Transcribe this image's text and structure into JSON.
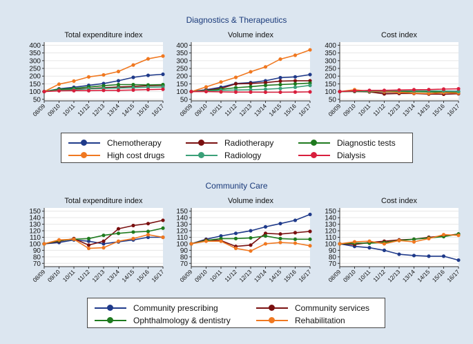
{
  "sections": [
    {
      "title": "Diagnostics & Therapeutics",
      "colors": [
        "#1f3a8a",
        "#7a1010",
        "#1e7a1e",
        "#f07820",
        "#3aa078",
        "#d81e3c"
      ],
      "legend": [
        "Chemotherapy",
        "Radiotherapy",
        "Diagnostic tests",
        "High cost drugs",
        "Radiology",
        "Dialysis"
      ]
    },
    {
      "title": "Community Care",
      "colors": [
        "#1f3a8a",
        "#7a1010",
        "#1e7a1e",
        "#f07820"
      ],
      "legend": [
        "Community prescribing",
        "Community services",
        "Ophthalmology & dentistry",
        "Rehabilitation"
      ]
    }
  ],
  "chart_data": [
    {
      "type": "line",
      "section": 0,
      "title": "Total expenditure index",
      "categories": [
        "08/09",
        "09/10",
        "10/11",
        "11/12",
        "12/13",
        "13/14",
        "14/15",
        "15/16",
        "16/17"
      ],
      "yticks": [
        50,
        100,
        150,
        200,
        250,
        300,
        350,
        400
      ],
      "ylim": [
        40,
        420
      ],
      "series": [
        {
          "name": "Chemotherapy",
          "values": [
            100,
            118,
            128,
            140,
            152,
            170,
            192,
            205,
            212
          ]
        },
        {
          "name": "Radiotherapy",
          "values": [
            100,
            110,
            115,
            120,
            125,
            130,
            133,
            138,
            140
          ]
        },
        {
          "name": "Diagnostic tests",
          "values": [
            100,
            115,
            120,
            130,
            138,
            145,
            145,
            143,
            145
          ]
        },
        {
          "name": "High cost drugs",
          "values": [
            100,
            148,
            168,
            195,
            208,
            230,
            272,
            312,
            330
          ]
        },
        {
          "name": "Radiology",
          "values": [
            100,
            108,
            112,
            118,
            120,
            123,
            125,
            128,
            130
          ]
        },
        {
          "name": "Dialysis",
          "values": [
            100,
            105,
            106,
            106,
            108,
            108,
            110,
            113,
            115
          ]
        }
      ]
    },
    {
      "type": "line",
      "section": 0,
      "title": "Volume index",
      "categories": [
        "08/09",
        "09/10",
        "10/11",
        "11/12",
        "12/13",
        "13/14",
        "14/15",
        "15/16",
        "16/17"
      ],
      "yticks": [
        50,
        100,
        150,
        200,
        250,
        300,
        350,
        400
      ],
      "ylim": [
        40,
        420
      ],
      "series": [
        {
          "name": "Chemotherapy",
          "values": [
            100,
            112,
            128,
            152,
            158,
            170,
            190,
            195,
            210
          ]
        },
        {
          "name": "Radiotherapy",
          "values": [
            100,
            108,
            120,
            150,
            152,
            158,
            168,
            170,
            170
          ]
        },
        {
          "name": "Diagnostic tests",
          "values": [
            100,
            105,
            115,
            125,
            132,
            140,
            145,
            150,
            155
          ]
        },
        {
          "name": "High cost drugs",
          "values": [
            100,
            130,
            162,
            192,
            228,
            260,
            310,
            335,
            370
          ]
        },
        {
          "name": "Radiology",
          "values": [
            100,
            103,
            108,
            110,
            112,
            115,
            120,
            128,
            140
          ]
        },
        {
          "name": "Dialysis",
          "values": [
            100,
            100,
            98,
            97,
            97,
            96,
            96,
            97,
            98
          ]
        }
      ]
    },
    {
      "type": "line",
      "section": 0,
      "title": "Cost index",
      "categories": [
        "08/09",
        "09/10",
        "10/11",
        "11/12",
        "12/13",
        "13/14",
        "14/15",
        "15/16",
        "16/17"
      ],
      "yticks": [
        50,
        100,
        150,
        200,
        250,
        300,
        350,
        400
      ],
      "ylim": [
        40,
        420
      ],
      "series": [
        {
          "name": "Chemotherapy",
          "values": [
            100,
            104,
            100,
            95,
            96,
            100,
            100,
            103,
            102
          ]
        },
        {
          "name": "Radiotherapy",
          "values": [
            100,
            101,
            98,
            85,
            88,
            88,
            84,
            83,
            86
          ]
        },
        {
          "name": "Diagnostic tests",
          "values": [
            100,
            102,
            100,
            100,
            100,
            100,
            98,
            96,
            94
          ]
        },
        {
          "name": "High cost drugs",
          "values": [
            100,
            112,
            102,
            98,
            95,
            90,
            88,
            93,
            90
          ]
        },
        {
          "name": "Radiology",
          "values": [
            100,
            104,
            104,
            105,
            105,
            105,
            105,
            104,
            100
          ]
        },
        {
          "name": "Dialysis",
          "values": [
            100,
            105,
            108,
            108,
            110,
            112,
            113,
            116,
            118
          ]
        }
      ]
    },
    {
      "type": "line",
      "section": 1,
      "title": "Total expenditure index",
      "categories": [
        "08/09",
        "09/10",
        "10/11",
        "11/12",
        "12/13",
        "13/14",
        "14/15",
        "15/16",
        "16/17"
      ],
      "yticks": [
        70,
        80,
        90,
        100,
        110,
        120,
        130,
        140,
        150
      ],
      "ylim": [
        65,
        155
      ],
      "series": [
        {
          "name": "Community prescribing",
          "values": [
            100,
            102,
            106,
            104,
            100,
            103,
            106,
            110,
            110
          ]
        },
        {
          "name": "Community services",
          "values": [
            100,
            104,
            108,
            98,
            104,
            123,
            128,
            131,
            136
          ]
        },
        {
          "name": "Ophthalmology & dentistry",
          "values": [
            100,
            105,
            107,
            108,
            113,
            116,
            118,
            119,
            124
          ]
        },
        {
          "name": "Rehabilitation",
          "values": [
            100,
            106,
            107,
            93,
            94,
            104,
            108,
            114,
            110
          ]
        }
      ]
    },
    {
      "type": "line",
      "section": 1,
      "title": "Volume index",
      "categories": [
        "08/09",
        "09/10",
        "10/11",
        "11/12",
        "12/13",
        "13/14",
        "14/15",
        "15/16",
        "16/17"
      ],
      "yticks": [
        70,
        80,
        90,
        100,
        110,
        120,
        130,
        140,
        150
      ],
      "ylim": [
        65,
        155
      ],
      "series": [
        {
          "name": "Community prescribing",
          "values": [
            100,
            107,
            112,
            116,
            120,
            126,
            131,
            136,
            145
          ]
        },
        {
          "name": "Community services",
          "values": [
            100,
            106,
            105,
            96,
            98,
            116,
            115,
            117,
            119
          ]
        },
        {
          "name": "Ophthalmology & dentistry",
          "values": [
            100,
            105,
            108,
            108,
            109,
            112,
            108,
            107,
            107
          ]
        },
        {
          "name": "Rehabilitation",
          "values": [
            100,
            104,
            104,
            93,
            89,
            100,
            102,
            101,
            97
          ]
        }
      ]
    },
    {
      "type": "line",
      "section": 1,
      "title": "Cost index",
      "categories": [
        "08/09",
        "09/10",
        "10/11",
        "11/12",
        "12/13",
        "13/14",
        "14/15",
        "15/16",
        "16/17"
      ],
      "yticks": [
        70,
        80,
        90,
        100,
        110,
        120,
        130,
        140,
        150
      ],
      "ylim": [
        65,
        155
      ],
      "series": [
        {
          "name": "Community prescribing",
          "values": [
            100,
            96,
            94,
            90,
            84,
            82,
            81,
            81,
            75
          ]
        },
        {
          "name": "Community services",
          "values": [
            100,
            99,
            102,
            104,
            106,
            107,
            110,
            112,
            115
          ]
        },
        {
          "name": "Ophthalmology & dentistry",
          "values": [
            100,
            101,
            101,
            102,
            105,
            107,
            109,
            111,
            115
          ]
        },
        {
          "name": "Rehabilitation",
          "values": [
            100,
            103,
            104,
            100,
            105,
            103,
            108,
            114,
            113
          ]
        }
      ]
    }
  ]
}
